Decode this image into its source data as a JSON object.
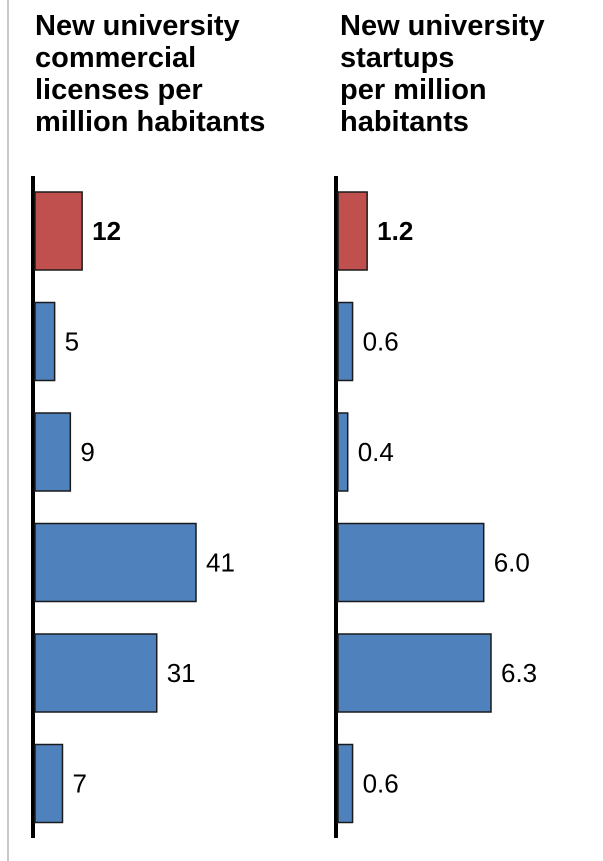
{
  "colors": {
    "highlight": "#c0504d",
    "bar": "#4f81bd",
    "axis": "#000000",
    "bar_stroke": "#1a1a1a"
  },
  "chart_data": [
    {
      "type": "bar",
      "orientation": "horizontal",
      "title": "New university\ncommercial\nlicenses per\nmillion habitants",
      "values": [
        12,
        5,
        9,
        41,
        31,
        7
      ],
      "labels": [
        "12",
        "5",
        "9",
        "41",
        "31",
        "7"
      ],
      "highlight_index": 0,
      "xlim": [
        0,
        41
      ]
    },
    {
      "type": "bar",
      "orientation": "horizontal",
      "title": "New university\nstartups\nper million\nhabitants",
      "values": [
        1.2,
        0.6,
        0.4,
        6.0,
        6.3,
        0.6
      ],
      "labels": [
        "1.2",
        "0.6",
        "0.4",
        "6.0",
        "6.3",
        "0.6"
      ],
      "highlight_index": 0,
      "xlim": [
        0,
        6.3
      ]
    }
  ]
}
